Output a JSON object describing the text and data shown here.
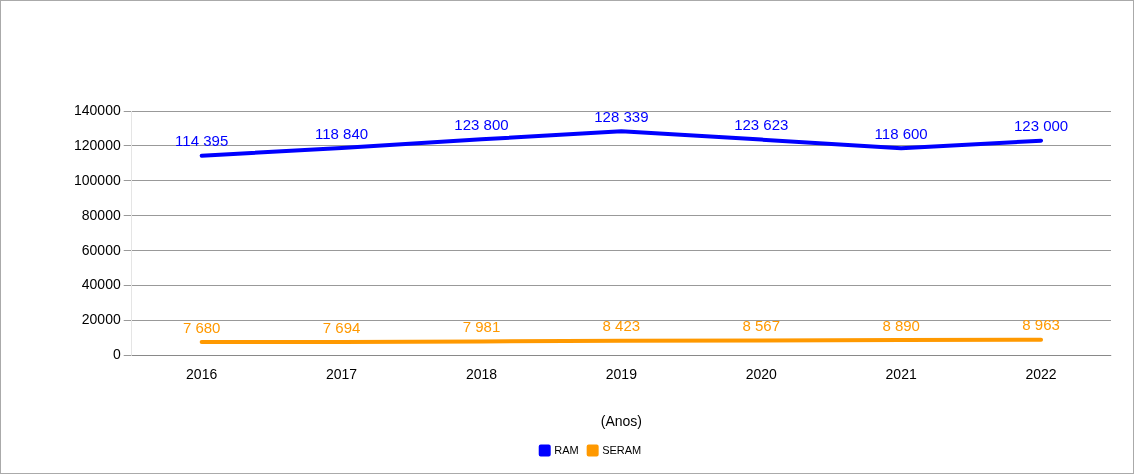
{
  "chart_data": {
    "type": "line",
    "xlabel": "(Anos)",
    "categories": [
      "2016",
      "2017",
      "2018",
      "2019",
      "2020",
      "2021",
      "2022"
    ],
    "series": [
      {
        "name": "RAM",
        "color": "#0000ff",
        "values": [
          114395,
          118840,
          123800,
          128339,
          123623,
          118600,
          123000
        ],
        "value_labels": [
          "114 395",
          "118 840",
          "123 800",
          "128 339",
          "123 623",
          "118 600",
          "123 000"
        ]
      },
      {
        "name": "SERAM",
        "color": "#ff9900",
        "values": [
          7680,
          7694,
          7981,
          8423,
          8567,
          8890,
          8963
        ],
        "value_labels": [
          "7 680",
          "7 694",
          "7 981",
          "8 423",
          "8 567",
          "8 890",
          "8 963"
        ]
      }
    ],
    "ylim": [
      0,
      140000
    ],
    "yticks": [
      0,
      20000,
      40000,
      60000,
      80000,
      100000,
      120000,
      140000
    ],
    "grid": "y",
    "legend": "bottom",
    "marker": "none",
    "line_style": "solid"
  }
}
